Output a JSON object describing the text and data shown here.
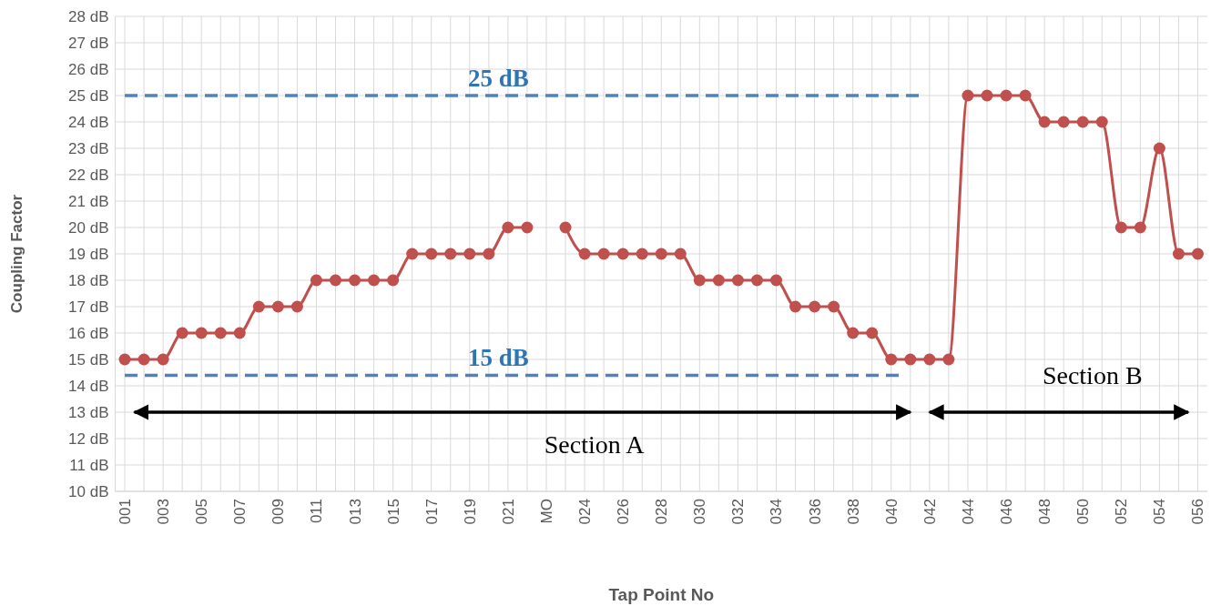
{
  "chart_data": {
    "type": "line",
    "xlabel": "Tap Point No",
    "ylabel": "Coupling Factor",
    "categories": [
      "001",
      null,
      "003",
      null,
      "005",
      null,
      "007",
      null,
      "009",
      null,
      "011",
      null,
      "013",
      null,
      "015",
      null,
      "017",
      null,
      "019",
      null,
      "021",
      null,
      "MO",
      null,
      "024",
      null,
      "026",
      null,
      "028",
      null,
      "030",
      null,
      "032",
      null,
      "034",
      null,
      "036",
      null,
      "038",
      null,
      "040",
      null,
      "042",
      null,
      "044",
      null,
      "046",
      null,
      "048",
      null,
      "050",
      null,
      "052",
      null,
      "054",
      null,
      "056"
    ],
    "series": [
      {
        "color": "#c0504d",
        "values": [
          15,
          15,
          15,
          16,
          16,
          16,
          16,
          17,
          17,
          17,
          18,
          18,
          18,
          18,
          18,
          19,
          19,
          19,
          19,
          19,
          20,
          20,
          null,
          20,
          19,
          19,
          19,
          19,
          19,
          19,
          18,
          18,
          18,
          18,
          18,
          17,
          17,
          17,
          16,
          16,
          15,
          15,
          15,
          15,
          25,
          25,
          25,
          25,
          24,
          24,
          24,
          24,
          20,
          20,
          23,
          19,
          19
        ]
      }
    ],
    "ylim": [
      10,
      28
    ],
    "yticks": [
      {
        "value": 10,
        "label": "10 dB"
      },
      {
        "value": 11,
        "label": "11 dB"
      },
      {
        "value": 12,
        "label": "12 dB"
      },
      {
        "value": 13,
        "label": "13 dB"
      },
      {
        "value": 14,
        "label": "14 dB"
      },
      {
        "value": 15,
        "label": "15 dB"
      },
      {
        "value": 16,
        "label": "16 dB"
      },
      {
        "value": 17,
        "label": "17 dB"
      },
      {
        "value": 18,
        "label": "18 dB"
      },
      {
        "value": 19,
        "label": "19 dB"
      },
      {
        "value": 20,
        "label": "20 dB"
      },
      {
        "value": 21,
        "label": "21 dB"
      },
      {
        "value": 22,
        "label": "22 dB"
      },
      {
        "value": 23,
        "label": "23 dB"
      },
      {
        "value": 24,
        "label": "24 dB"
      },
      {
        "value": 25,
        "label": "25 dB"
      },
      {
        "value": 26,
        "label": "26 dB"
      },
      {
        "value": 27,
        "label": "27 dB"
      },
      {
        "value": 28,
        "label": "28 dB"
      }
    ],
    "grid": true,
    "marker": "circle",
    "line_style": "solid",
    "ref_lines": [
      {
        "axis": "y",
        "value": 25,
        "label": "25 dB",
        "color": "#4f81bd",
        "line_style": "dashed"
      },
      {
        "axis": "y",
        "value": 14.4,
        "label": "15 dB",
        "color": "#4f81bd",
        "line_style": "dashed"
      }
    ],
    "annotations": [
      "Section A",
      "Section B"
    ]
  }
}
